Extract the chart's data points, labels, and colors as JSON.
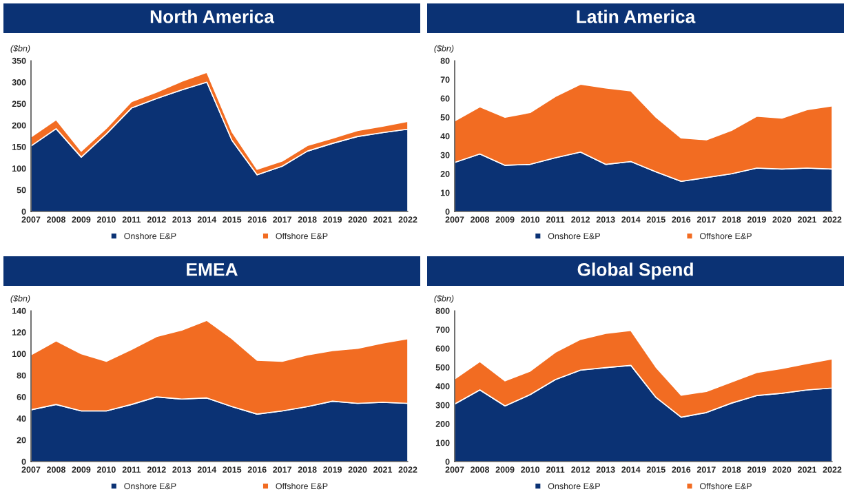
{
  "chart_data": [
    {
      "type": "area",
      "title": "North America",
      "ylabel": "($bn)",
      "stacked": true,
      "legend": "bottom",
      "grid": false,
      "categories": [
        "2007",
        "2008",
        "2009",
        "2010",
        "2011",
        "2012",
        "2013",
        "2014",
        "2015",
        "2016",
        "2017",
        "2018",
        "2019",
        "2020",
        "2021",
        "2022"
      ],
      "ylim": [
        0,
        350
      ],
      "yticks": [
        0,
        50,
        100,
        150,
        200,
        250,
        300,
        350
      ],
      "series": [
        {
          "name": "Onshore E&P",
          "color": "#0b3274",
          "values": [
            152,
            192,
            126,
            180,
            240,
            262,
            282,
            300,
            165,
            85,
            105,
            140,
            158,
            174,
            183,
            191
          ]
        },
        {
          "name": "Offshore E&P",
          "color": "#f26c22",
          "values": [
            21,
            21,
            14,
            13,
            15,
            15,
            20,
            23,
            20,
            13,
            12,
            13,
            12,
            14,
            15,
            18
          ]
        }
      ]
    },
    {
      "type": "area",
      "title": "Latin America",
      "ylabel": "($bn)",
      "stacked": true,
      "legend": "bottom",
      "grid": false,
      "categories": [
        "2007",
        "2008",
        "2009",
        "2010",
        "2011",
        "2012",
        "2013",
        "2014",
        "2015",
        "2016",
        "2017",
        "2018",
        "2019",
        "2020",
        "2021",
        "2022"
      ],
      "ylim": [
        0,
        80
      ],
      "yticks": [
        0,
        10,
        20,
        30,
        40,
        50,
        60,
        70,
        80
      ],
      "series": [
        {
          "name": "Onshore E&P",
          "color": "#0b3274",
          "values": [
            26,
            30.5,
            24.5,
            25,
            28.5,
            31.5,
            25,
            26.5,
            21,
            16,
            18,
            20,
            23,
            22.5,
            23,
            22.5
          ]
        },
        {
          "name": "Offshore E&P",
          "color": "#f26c22",
          "values": [
            22,
            25,
            25.5,
            27.5,
            32.5,
            36,
            40.5,
            37.5,
            29,
            23,
            20,
            23,
            27.5,
            27,
            31,
            33.5
          ]
        }
      ]
    },
    {
      "type": "area",
      "title": "EMEA",
      "ylabel": "($bn)",
      "stacked": true,
      "legend": "bottom",
      "grid": false,
      "categories": [
        "2007",
        "2008",
        "2009",
        "2010",
        "2011",
        "2012",
        "2013",
        "2014",
        "2015",
        "2016",
        "2017",
        "2018",
        "2019",
        "2020",
        "2021",
        "2022"
      ],
      "ylim": [
        0,
        140
      ],
      "yticks": [
        0,
        20,
        40,
        60,
        80,
        100,
        120,
        140
      ],
      "series": [
        {
          "name": "Onshore E&P",
          "color": "#0b3274",
          "values": [
            48,
            53,
            47,
            47,
            53,
            60,
            58,
            59,
            51,
            44,
            47,
            51,
            56,
            54,
            55,
            54
          ]
        },
        {
          "name": "Offshore E&P",
          "color": "#f26c22",
          "values": [
            51,
            59,
            53,
            46,
            51,
            56,
            64,
            72,
            63,
            50,
            46,
            48,
            47,
            51,
            55,
            60
          ]
        }
      ]
    },
    {
      "type": "area",
      "title": "Global Spend",
      "ylabel": "($bn)",
      "stacked": true,
      "legend": "bottom",
      "grid": false,
      "categories": [
        "2007",
        "2008",
        "2009",
        "2010",
        "2011",
        "2012",
        "2013",
        "2014",
        "2015",
        "2016",
        "2017",
        "2018",
        "2019",
        "2020",
        "2021",
        "2022"
      ],
      "ylim": [
        0,
        800
      ],
      "yticks": [
        0,
        100,
        200,
        300,
        400,
        500,
        600,
        700,
        800
      ],
      "series": [
        {
          "name": "Onshore E&P",
          "color": "#0b3274",
          "values": [
            305,
            380,
            295,
            355,
            435,
            485,
            498,
            510,
            340,
            235,
            260,
            310,
            350,
            362,
            380,
            390
          ]
        },
        {
          "name": "Offshore E&P",
          "color": "#f26c22",
          "values": [
            133,
            150,
            133,
            125,
            145,
            163,
            182,
            185,
            160,
            117,
            112,
            112,
            122,
            131,
            140,
            155
          ]
        }
      ]
    }
  ]
}
